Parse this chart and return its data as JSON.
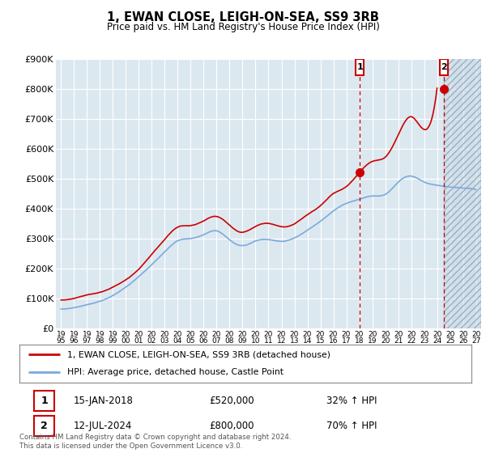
{
  "title": "1, EWAN CLOSE, LEIGH-ON-SEA, SS9 3RB",
  "subtitle": "Price paid vs. HM Land Registry's House Price Index (HPI)",
  "legend_line1": "1, EWAN CLOSE, LEIGH-ON-SEA, SS9 3RB (detached house)",
  "legend_line2": "HPI: Average price, detached house, Castle Point",
  "transaction1_date": "15-JAN-2018",
  "transaction1_price": "£520,000",
  "transaction1_hpi": "32% ↑ HPI",
  "transaction2_date": "12-JUL-2024",
  "transaction2_price": "£800,000",
  "transaction2_hpi": "70% ↑ HPI",
  "footer": "Contains HM Land Registry data © Crown copyright and database right 2024.\nThis data is licensed under the Open Government Licence v3.0.",
  "red_color": "#cc0000",
  "blue_color": "#7aaadd",
  "background_color": "#ffffff",
  "plot_bg_color": "#dce8f0",
  "ylim": [
    0,
    900000
  ],
  "yticks": [
    0,
    100000,
    200000,
    300000,
    400000,
    500000,
    600000,
    700000,
    800000,
    900000
  ],
  "ytick_labels": [
    "£0",
    "£100K",
    "£200K",
    "£300K",
    "£400K",
    "£500K",
    "£600K",
    "£700K",
    "£800K",
    "£900K"
  ],
  "transaction1_x": 2018.04,
  "transaction1_y": 520000,
  "transaction2_x": 2024.54,
  "transaction2_y": 800000,
  "hatch_start": 2024.54,
  "xlim_start": 1994.6,
  "xlim_end": 2027.4
}
